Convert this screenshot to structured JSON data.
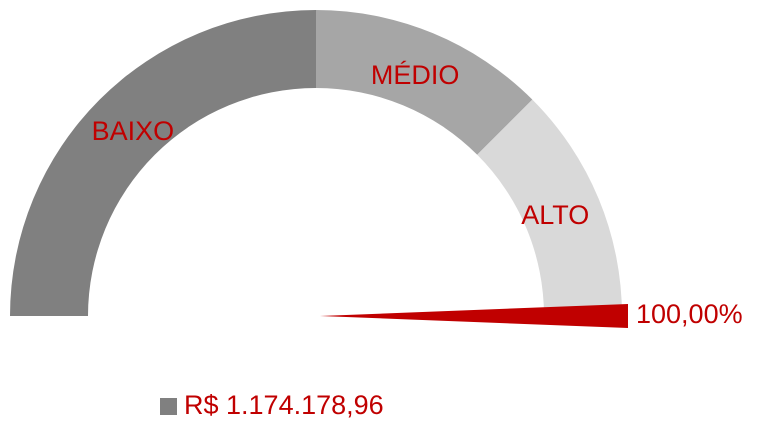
{
  "chart_data": {
    "type": "gauge",
    "bands": [
      {
        "name": "BAIXO",
        "from": 0,
        "to": 50,
        "color": "#808080"
      },
      {
        "name": "MÉDIO",
        "from": 50,
        "to": 75,
        "color": "#a6a6a6"
      },
      {
        "name": "ALTO",
        "from": 75,
        "to": 100,
        "color": "#d9d9d9"
      }
    ],
    "ylim": [
      0,
      100
    ],
    "values": [
      100
    ],
    "value_labels": [
      "100,00%"
    ],
    "needle_color": "#c00000",
    "legend": {
      "label": "R$ 1.174.178,96",
      "color": "#808080"
    }
  }
}
